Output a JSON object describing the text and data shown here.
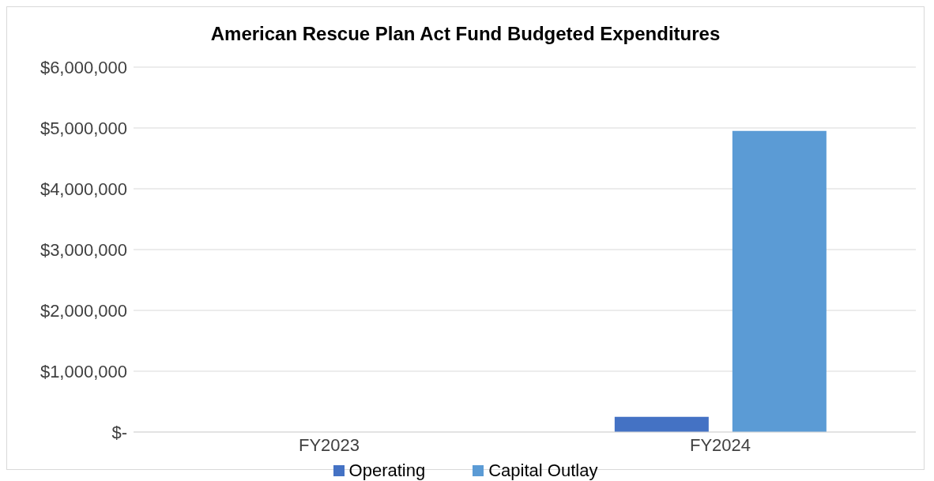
{
  "chart_data": {
    "type": "bar",
    "title": "American Rescue Plan Act Fund Budgeted Expenditures",
    "categories": [
      "FY2023",
      "FY2024"
    ],
    "series": [
      {
        "name": "Operating",
        "color": "#4472c4",
        "values": [
          0,
          250000
        ]
      },
      {
        "name": "Capital Outlay",
        "color": "#5b9bd5",
        "values": [
          0,
          4950000
        ]
      }
    ],
    "ylim": [
      0,
      6000000
    ],
    "yticks": [
      {
        "value": 0,
        "label": "$-"
      },
      {
        "value": 1000000,
        "label": "$1,000,000"
      },
      {
        "value": 2000000,
        "label": "$2,000,000"
      },
      {
        "value": 3000000,
        "label": "$3,000,000"
      },
      {
        "value": 4000000,
        "label": "$4,000,000"
      },
      {
        "value": 5000000,
        "label": "$5,000,000"
      },
      {
        "value": 6000000,
        "label": "$6,000,000"
      }
    ],
    "grid": "y",
    "legend": "bottom"
  }
}
